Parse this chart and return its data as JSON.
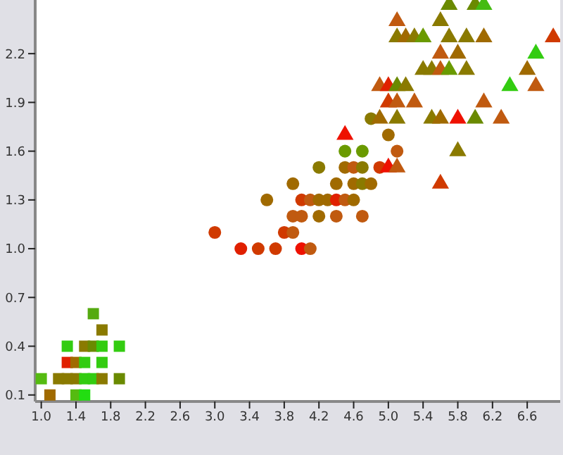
{
  "chart_data": {
    "type": "scatter",
    "xlim": [
      0.93,
      6.98
    ],
    "xticks": [
      {
        "value": 1.0,
        "label": "1.0"
      },
      {
        "value": 1.4,
        "label": "1.4"
      },
      {
        "value": 1.8,
        "label": "1.8"
      },
      {
        "value": 2.2,
        "label": "2.2"
      },
      {
        "value": 2.6,
        "label": "2.6"
      },
      {
        "value": 3.0,
        "label": "3.0"
      },
      {
        "value": 3.4,
        "label": "3.4"
      },
      {
        "value": 3.8,
        "label": "3.8"
      },
      {
        "value": 4.2,
        "label": "4.2"
      },
      {
        "value": 4.6,
        "label": "4.6"
      },
      {
        "value": 5.0,
        "label": "5.0"
      },
      {
        "value": 5.4,
        "label": "5.4"
      },
      {
        "value": 5.8,
        "label": "5.8"
      },
      {
        "value": 6.2,
        "label": "6.2"
      },
      {
        "value": 6.6,
        "label": "6.6"
      }
    ],
    "ylim": [
      0.06,
      2.53
    ],
    "yticks": [
      0.1,
      0.4,
      0.7,
      {
        "value": 1.0,
        "label": "1.0"
      },
      1.3,
      1.6,
      1.9,
      2.2
    ],
    "series": [
      {
        "marker": "square",
        "x": [
          1.0,
          1.1,
          1.2,
          1.3,
          1.3,
          1.3,
          1.4,
          1.4,
          1.4,
          1.5,
          1.5,
          1.5,
          1.5,
          1.6,
          1.6,
          1.6,
          1.7,
          1.7,
          1.7,
          1.7,
          1.9,
          1.9
        ],
        "values": [
          0.2,
          0.1,
          0.2,
          0.2,
          0.4,
          0.3,
          0.1,
          0.2,
          0.3,
          0.4,
          0.3,
          0.2,
          0.1,
          0.4,
          0.2,
          0.6,
          0.5,
          0.4,
          0.3,
          0.2,
          0.4,
          0.2
        ],
        "colors": [
          "#55bb11",
          "#a06a00",
          "#8a7a00",
          "#8a7a00",
          "#33cc11",
          "#e02000",
          "#55bb11",
          "#8a7a00",
          "#a06a00",
          "#8a7a00",
          "#33cc11",
          "#33cc11",
          "#22dd11",
          "#6a8a00",
          "#33cc11",
          "#55aa11",
          "#8a7a00",
          "#33cc11",
          "#33cc11",
          "#8a7a00",
          "#33cc11",
          "#6a8a00"
        ]
      },
      {
        "marker": "circle",
        "x": [
          3.3,
          3.5,
          3.7,
          4.0,
          4.1,
          3.0,
          3.8,
          3.9,
          3.9,
          4.0,
          4.2,
          4.4,
          4.7,
          3.6,
          4.0,
          4.1,
          4.2,
          4.3,
          4.4,
          4.5,
          4.6,
          3.9,
          4.4,
          4.6,
          4.7,
          4.8,
          4.2,
          4.5,
          4.6,
          4.7,
          4.9,
          4.5,
          4.7,
          5.1,
          5.0,
          4.8
        ],
        "values": [
          1.0,
          1.0,
          1.0,
          1.0,
          1.0,
          1.1,
          1.1,
          1.1,
          1.2,
          1.2,
          1.2,
          1.2,
          1.2,
          1.3,
          1.3,
          1.3,
          1.3,
          1.3,
          1.3,
          1.3,
          1.3,
          1.4,
          1.4,
          1.4,
          1.4,
          1.4,
          1.5,
          1.5,
          1.5,
          1.5,
          1.5,
          1.6,
          1.6,
          1.6,
          1.7,
          1.8
        ],
        "colors": [
          "#e02000",
          "#d03a00",
          "#d03a00",
          "#ee1100",
          "#c05a10",
          "#d03a00",
          "#d03a00",
          "#c05a10",
          "#c05a10",
          "#c05a10",
          "#a06a00",
          "#c05a10",
          "#c05a10",
          "#a06a00",
          "#d03a00",
          "#c05a10",
          "#a06a00",
          "#a06a00",
          "#e02000",
          "#c05a10",
          "#a06a00",
          "#a06a00",
          "#a06a00",
          "#a06a00",
          "#8a7a00",
          "#a06a00",
          "#8a7a00",
          "#a06a00",
          "#c05a10",
          "#8a7a00",
          "#d03a00",
          "#6a9a00",
          "#6a9a00",
          "#c05a10",
          "#a06a00",
          "#8a7a00"
        ]
      },
      {
        "marker": "triangle",
        "x": [
          5.7,
          6.0,
          6.1,
          5.1,
          5.6,
          5.1,
          5.2,
          5.3,
          5.4,
          5.7,
          5.9,
          6.1,
          6.9,
          5.6,
          5.8,
          6.7,
          5.4,
          5.5,
          5.6,
          5.7,
          5.9,
          6.6,
          4.9,
          5.0,
          5.1,
          5.2,
          6.4,
          6.7,
          5.0,
          5.1,
          5.3,
          6.1,
          4.9,
          5.1,
          5.5,
          5.6,
          5.8,
          6.0,
          6.3,
          4.5,
          5.8,
          5.0,
          5.1,
          5.6
        ],
        "values": [
          2.5,
          2.5,
          2.5,
          2.4,
          2.4,
          2.3,
          2.3,
          2.3,
          2.3,
          2.3,
          2.3,
          2.3,
          2.3,
          2.2,
          2.2,
          2.2,
          2.1,
          2.1,
          2.1,
          2.1,
          2.1,
          2.1,
          2.0,
          2.0,
          2.0,
          2.0,
          2.0,
          2.0,
          1.9,
          1.9,
          1.9,
          1.9,
          1.8,
          1.8,
          1.8,
          1.8,
          1.8,
          1.8,
          1.8,
          1.7,
          1.6,
          1.5,
          1.5,
          1.4
        ],
        "colors": [
          "#6a8a00",
          "#6a8a00",
          "#44bb11",
          "#c05a10",
          "#8a7a00",
          "#8a7a00",
          "#a06a00",
          "#8a7a00",
          "#6a9a00",
          "#8a7a00",
          "#8a7a00",
          "#a06a00",
          "#d03a00",
          "#c05a10",
          "#a06a00",
          "#33cc11",
          "#8a7a00",
          "#8a7a00",
          "#c05a10",
          "#6a9a00",
          "#8a7a00",
          "#a06a00",
          "#c05a10",
          "#e02000",
          "#6a8a00",
          "#8a7a00",
          "#33cc11",
          "#c05a10",
          "#d03a00",
          "#c05a10",
          "#c05a10",
          "#c05a10",
          "#a06a00",
          "#8a7a00",
          "#8a7a00",
          "#a06a00",
          "#ee1100",
          "#6a8a00",
          "#c05a10",
          "#ee1100",
          "#8a7a00",
          "#ee1100",
          "#c05a10",
          "#d03a00"
        ]
      }
    ]
  }
}
